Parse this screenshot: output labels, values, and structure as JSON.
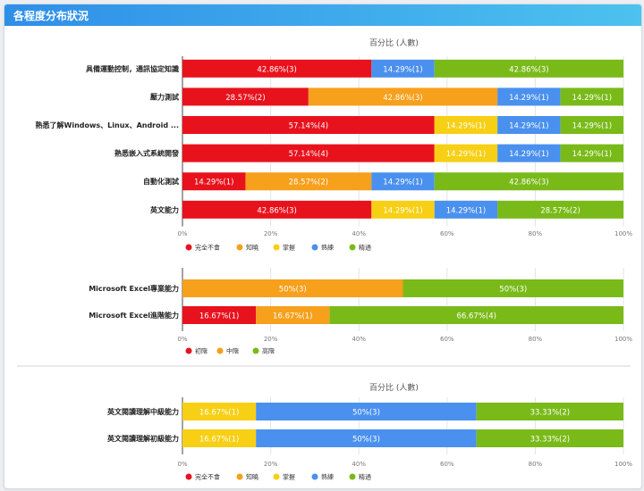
{
  "panel": {
    "title": "各程度分布狀況"
  },
  "colors": {
    "red": "#e8121d",
    "orange": "#f6a01c",
    "yellow": "#f7cf14",
    "blue": "#4a90ee",
    "green": "#79ba19",
    "header_start": "#2f8fe8",
    "header_end": "#4cc2ef"
  },
  "chart_data": [
    {
      "type": "bar",
      "orientation": "horizontal",
      "stacked": true,
      "title": "百分比 (人數)",
      "categories": [
        "具備運動控制，通訊協定知識",
        "壓力測試",
        "熟悉了解Windows、Linux、Android ...",
        "熟悉嵌入式系統開發",
        "自動化測試",
        "英文能力"
      ],
      "series": [
        {
          "name": "完全不會",
          "color": "#e8121d",
          "values": [
            42.86,
            28.57,
            57.14,
            57.14,
            14.29,
            42.86
          ],
          "counts": [
            3,
            2,
            4,
            4,
            1,
            3
          ]
        },
        {
          "name": "知曉",
          "color": "#f6a01c",
          "values": [
            0,
            42.86,
            0,
            0,
            28.57,
            0
          ],
          "counts": [
            0,
            3,
            0,
            0,
            2,
            0
          ]
        },
        {
          "name": "掌握",
          "color": "#f7cf14",
          "values": [
            0,
            0,
            14.29,
            14.29,
            0,
            14.29
          ],
          "counts": [
            0,
            0,
            1,
            1,
            0,
            1
          ]
        },
        {
          "name": "熟練",
          "color": "#4a90ee",
          "values": [
            14.29,
            14.29,
            14.29,
            14.29,
            14.29,
            14.29
          ],
          "counts": [
            1,
            1,
            1,
            1,
            1,
            1
          ]
        },
        {
          "name": "精通",
          "color": "#79ba19",
          "values": [
            42.86,
            14.29,
            14.29,
            14.29,
            42.86,
            28.57
          ],
          "counts": [
            3,
            1,
            1,
            1,
            3,
            2
          ]
        }
      ],
      "xticks": [
        "0%",
        "20%",
        "40%",
        "60%",
        "80%",
        "100%"
      ],
      "xlim": [
        0,
        100
      ],
      "grid": true,
      "legend": "bottom-left"
    },
    {
      "type": "bar",
      "orientation": "horizontal",
      "stacked": true,
      "title": "",
      "categories": [
        "Microsoft Excel專業能力",
        "Microsoft Excel進階能力"
      ],
      "series": [
        {
          "name": "初階",
          "color": "#e8121d",
          "values": [
            0,
            16.67
          ],
          "counts": [
            0,
            1
          ]
        },
        {
          "name": "中階",
          "color": "#f6a01c",
          "values": [
            50,
            16.67
          ],
          "counts": [
            3,
            1
          ]
        },
        {
          "name": "高階",
          "color": "#79ba19",
          "values": [
            50,
            66.67
          ],
          "counts": [
            3,
            4
          ]
        }
      ],
      "xticks": [
        "0%",
        "20%",
        "40%",
        "60%",
        "80%",
        "100%"
      ],
      "xlim": [
        0,
        100
      ],
      "grid": true,
      "legend": "bottom-left"
    },
    {
      "type": "bar",
      "orientation": "horizontal",
      "stacked": true,
      "title": "百分比 (人數)",
      "categories": [
        "英文閱讀理解中級能力",
        "英文閱讀理解初級能力"
      ],
      "series": [
        {
          "name": "完全不會",
          "color": "#e8121d",
          "values": [
            0,
            0
          ],
          "counts": [
            0,
            0
          ]
        },
        {
          "name": "知曉",
          "color": "#f6a01c",
          "values": [
            0,
            0
          ],
          "counts": [
            0,
            0
          ]
        },
        {
          "name": "掌握",
          "color": "#f7cf14",
          "values": [
            16.67,
            16.67
          ],
          "counts": [
            1,
            1
          ]
        },
        {
          "name": "熟練",
          "color": "#4a90ee",
          "values": [
            50,
            50
          ],
          "counts": [
            3,
            3
          ]
        },
        {
          "name": "精通",
          "color": "#79ba19",
          "values": [
            33.33,
            33.33
          ],
          "counts": [
            2,
            2
          ]
        }
      ],
      "xticks": [
        "0%",
        "20%",
        "40%",
        "60%",
        "80%",
        "100%"
      ],
      "xlim": [
        0,
        100
      ],
      "grid": true,
      "legend": "bottom-left"
    }
  ]
}
